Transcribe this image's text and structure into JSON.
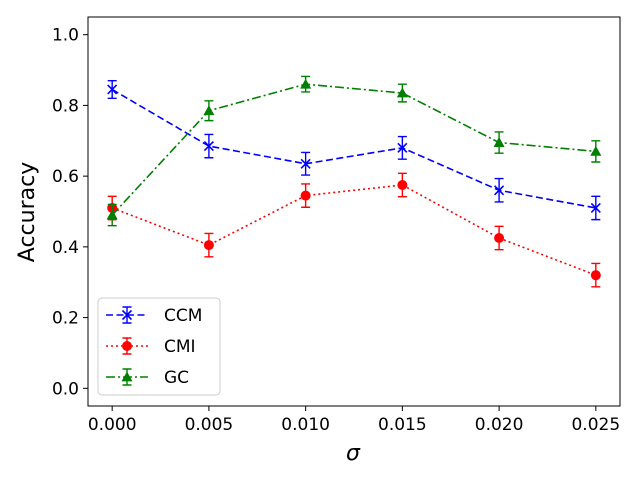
{
  "chart_data": {
    "type": "line",
    "xlabel": "σ",
    "ylabel": "Accuracy",
    "x": [
      0.0,
      0.005,
      0.01,
      0.015,
      0.02,
      0.025
    ],
    "x_tick_labels": [
      "0.000",
      "0.005",
      "0.010",
      "0.015",
      "0.020",
      "0.025"
    ],
    "y_ticks": [
      0.0,
      0.2,
      0.4,
      0.6,
      0.8,
      1.0
    ],
    "y_tick_labels": [
      "0.0",
      "0.2",
      "0.4",
      "0.6",
      "0.8",
      "1.0"
    ],
    "xlim": [
      -0.00125,
      0.02625
    ],
    "ylim": [
      -0.05,
      1.05
    ],
    "grid": false,
    "legend_position": "lower-left",
    "series": [
      {
        "name": "CCM",
        "values": [
          0.845,
          0.685,
          0.635,
          0.68,
          0.56,
          0.51
        ],
        "errors": [
          0.025,
          0.033,
          0.032,
          0.032,
          0.033,
          0.033
        ],
        "color": "#0000ff",
        "linestyle": "dashed",
        "marker": "x"
      },
      {
        "name": "CMI",
        "values": [
          0.51,
          0.405,
          0.545,
          0.575,
          0.425,
          0.32
        ],
        "errors": [
          0.033,
          0.033,
          0.033,
          0.033,
          0.033,
          0.033
        ],
        "color": "#ff0000",
        "linestyle": "dotted",
        "marker": "circle"
      },
      {
        "name": "GC",
        "values": [
          0.49,
          0.785,
          0.86,
          0.835,
          0.695,
          0.67
        ],
        "errors": [
          0.03,
          0.028,
          0.022,
          0.025,
          0.03,
          0.03
        ],
        "color": "#008000",
        "linestyle": "dashdot",
        "marker": "triangle"
      }
    ]
  }
}
